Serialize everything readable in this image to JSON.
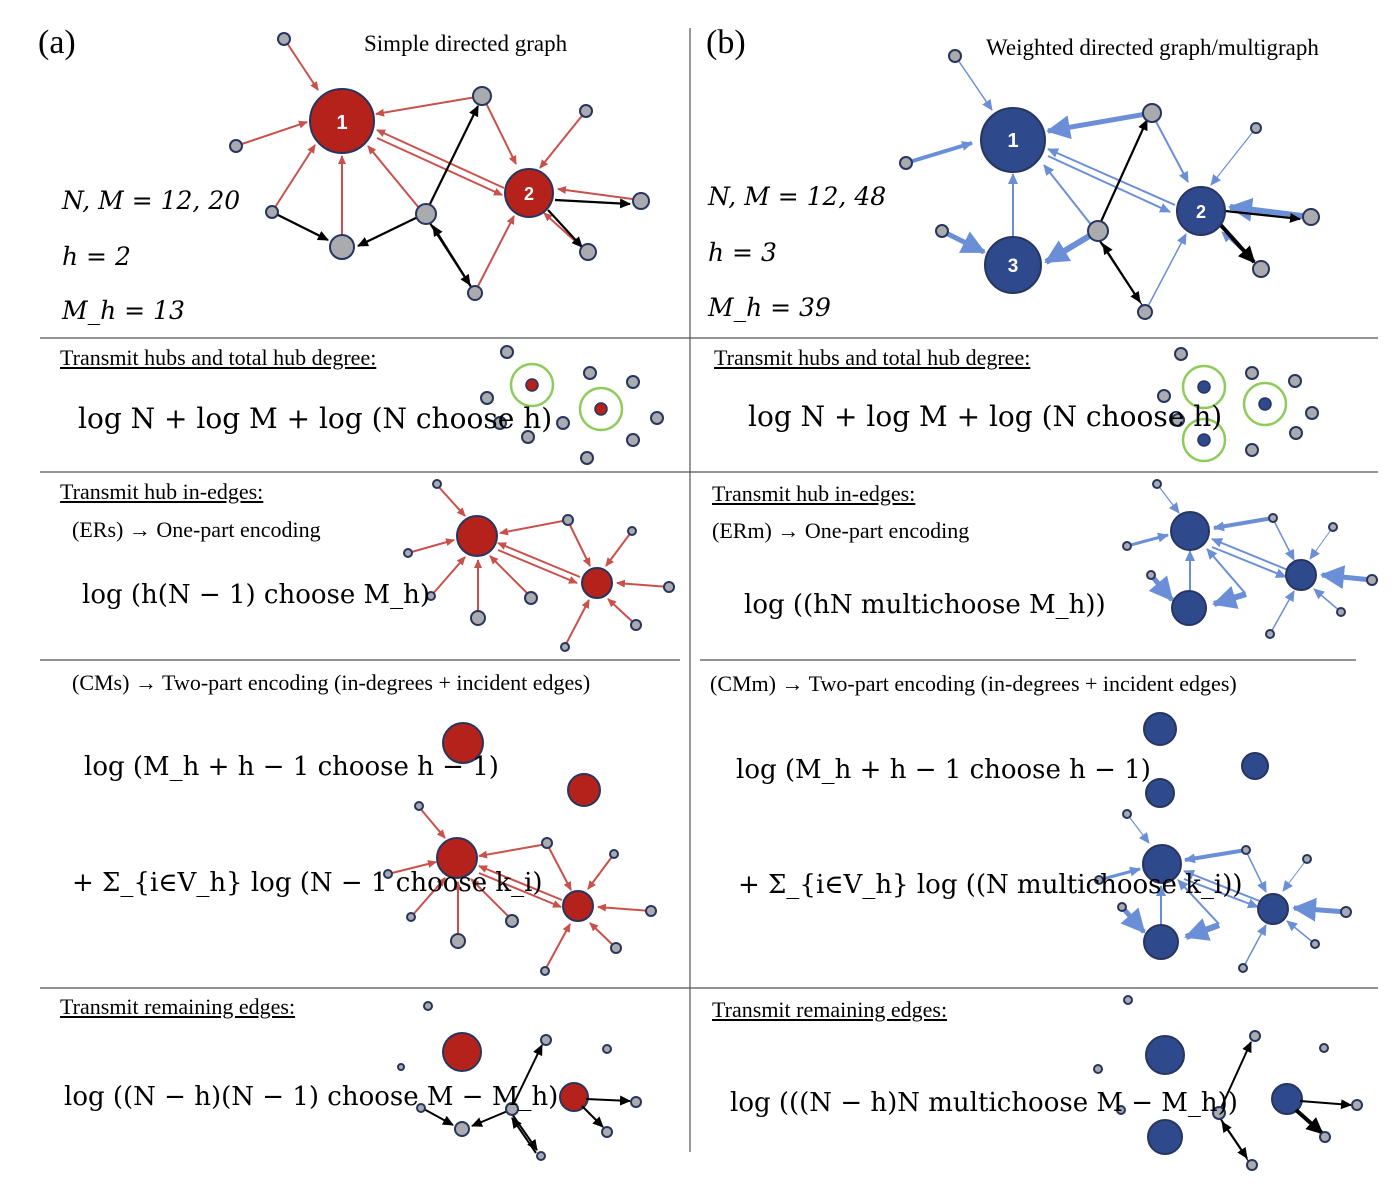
{
  "panel_a": {
    "label": "(a)",
    "title": "Simple directed graph",
    "stats": [
      "N, M = 12, 20",
      "h = 2",
      "M_h = 13"
    ],
    "hub_labels": [
      "1",
      "2"
    ],
    "hubs_heading": "Transmit hubs and total hub degree:",
    "hubs_formula": "log N + log M + log (N choose h)",
    "in_edges_heading": "Transmit hub in-edges:",
    "one_part_label": "(ERs) → One-part encoding",
    "one_part_formula": "log (h(N − 1) choose M_h)",
    "two_part_label": "(CMs) → Two-part encoding (in-degrees + incident edges)",
    "two_part_formula_1": "log (M_h + h − 1 choose h − 1)",
    "two_part_formula_2": "+ Σ_{i∈V_h} log (N − 1 choose k_i)",
    "remaining_heading": "Transmit remaining edges:",
    "remaining_formula": "log ((N − h)(N − 1) choose M − M_h)"
  },
  "panel_b": {
    "label": "(b)",
    "title": "Weighted directed graph/multigraph",
    "stats": [
      "N, M = 12, 48",
      "h = 3",
      "M_h = 39"
    ],
    "hub_labels": [
      "1",
      "2",
      "3"
    ],
    "hubs_heading": "Transmit hubs and total hub degree:",
    "hubs_formula": "log N + log M + log (N choose h)",
    "in_edges_heading": "Transmit hub in-edges:",
    "one_part_label": "(ERm) → One-part encoding",
    "one_part_formula": "log ((hN multichoose M_h))",
    "two_part_label": "(CMm) → Two-part encoding (in-degrees + incident edges)",
    "two_part_formula_1": "log (M_h + h − 1 choose h − 1)",
    "two_part_formula_2": "+ Σ_{i∈V_h} log ((N multichoose k_i))",
    "remaining_heading": "Transmit remaining edges:",
    "remaining_formula": "log (((N − h)N multichoose M − M_h))"
  },
  "colors": {
    "red_hub": "#b5221c",
    "red_edge": "#c9514c",
    "blue_hub": "#2e4a8c",
    "blue_edge": "#6b8fd6",
    "node_gray": "#a9abae",
    "node_outline": "#27355f",
    "ring_green": "#8fcb5c",
    "divider": "#555555"
  }
}
